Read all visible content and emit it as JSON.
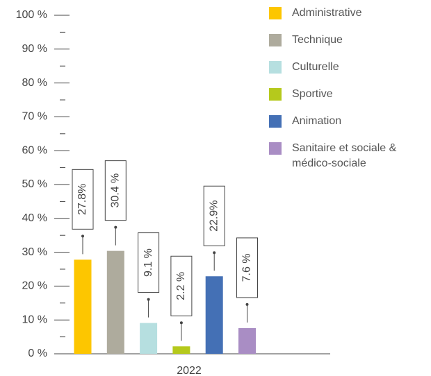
{
  "chart_data": {
    "type": "bar",
    "categories": [
      "2022"
    ],
    "series": [
      {
        "name": "Administrative",
        "color": "#fdc600",
        "values": [
          27.8
        ],
        "value_labels": [
          "27.8%"
        ]
      },
      {
        "name": "Technique",
        "color": "#aeab9d",
        "values": [
          30.4
        ],
        "value_labels": [
          "30.4 %"
        ]
      },
      {
        "name": "Culturelle",
        "color": "#b6dfe0",
        "values": [
          9.1
        ],
        "value_labels": [
          "9.1 %"
        ]
      },
      {
        "name": "Sportive",
        "color": "#b5c91c",
        "values": [
          2.2
        ],
        "value_labels": [
          "2.2 %"
        ]
      },
      {
        "name": "Animation",
        "color": "#4470b5",
        "values": [
          22.9
        ],
        "value_labels": [
          "22.9%"
        ]
      },
      {
        "name": "Sanitaire et sociale & médico-sociale",
        "color": "#a98dc4",
        "values": [
          7.6
        ],
        "value_labels": [
          "7.6 %"
        ]
      }
    ],
    "ylim": [
      0,
      100
    ],
    "yticks": [
      {
        "value": 0,
        "label": "0 %"
      },
      {
        "value": 10,
        "label": "10 %"
      },
      {
        "value": 20,
        "label": "20 %"
      },
      {
        "value": 30,
        "label": "30 %"
      },
      {
        "value": 40,
        "label": "40 %"
      },
      {
        "value": 50,
        "label": "50 %"
      },
      {
        "value": 60,
        "label": "60 %"
      },
      {
        "value": 70,
        "label": "70 %"
      },
      {
        "value": 80,
        "label": "80 %"
      },
      {
        "value": 90,
        "label": "90 %"
      },
      {
        "value": 100,
        "label": "100 %"
      }
    ],
    "yticks_minor": [
      5,
      15,
      25,
      35,
      45,
      55,
      65,
      75,
      85,
      95
    ],
    "legend": "right"
  }
}
